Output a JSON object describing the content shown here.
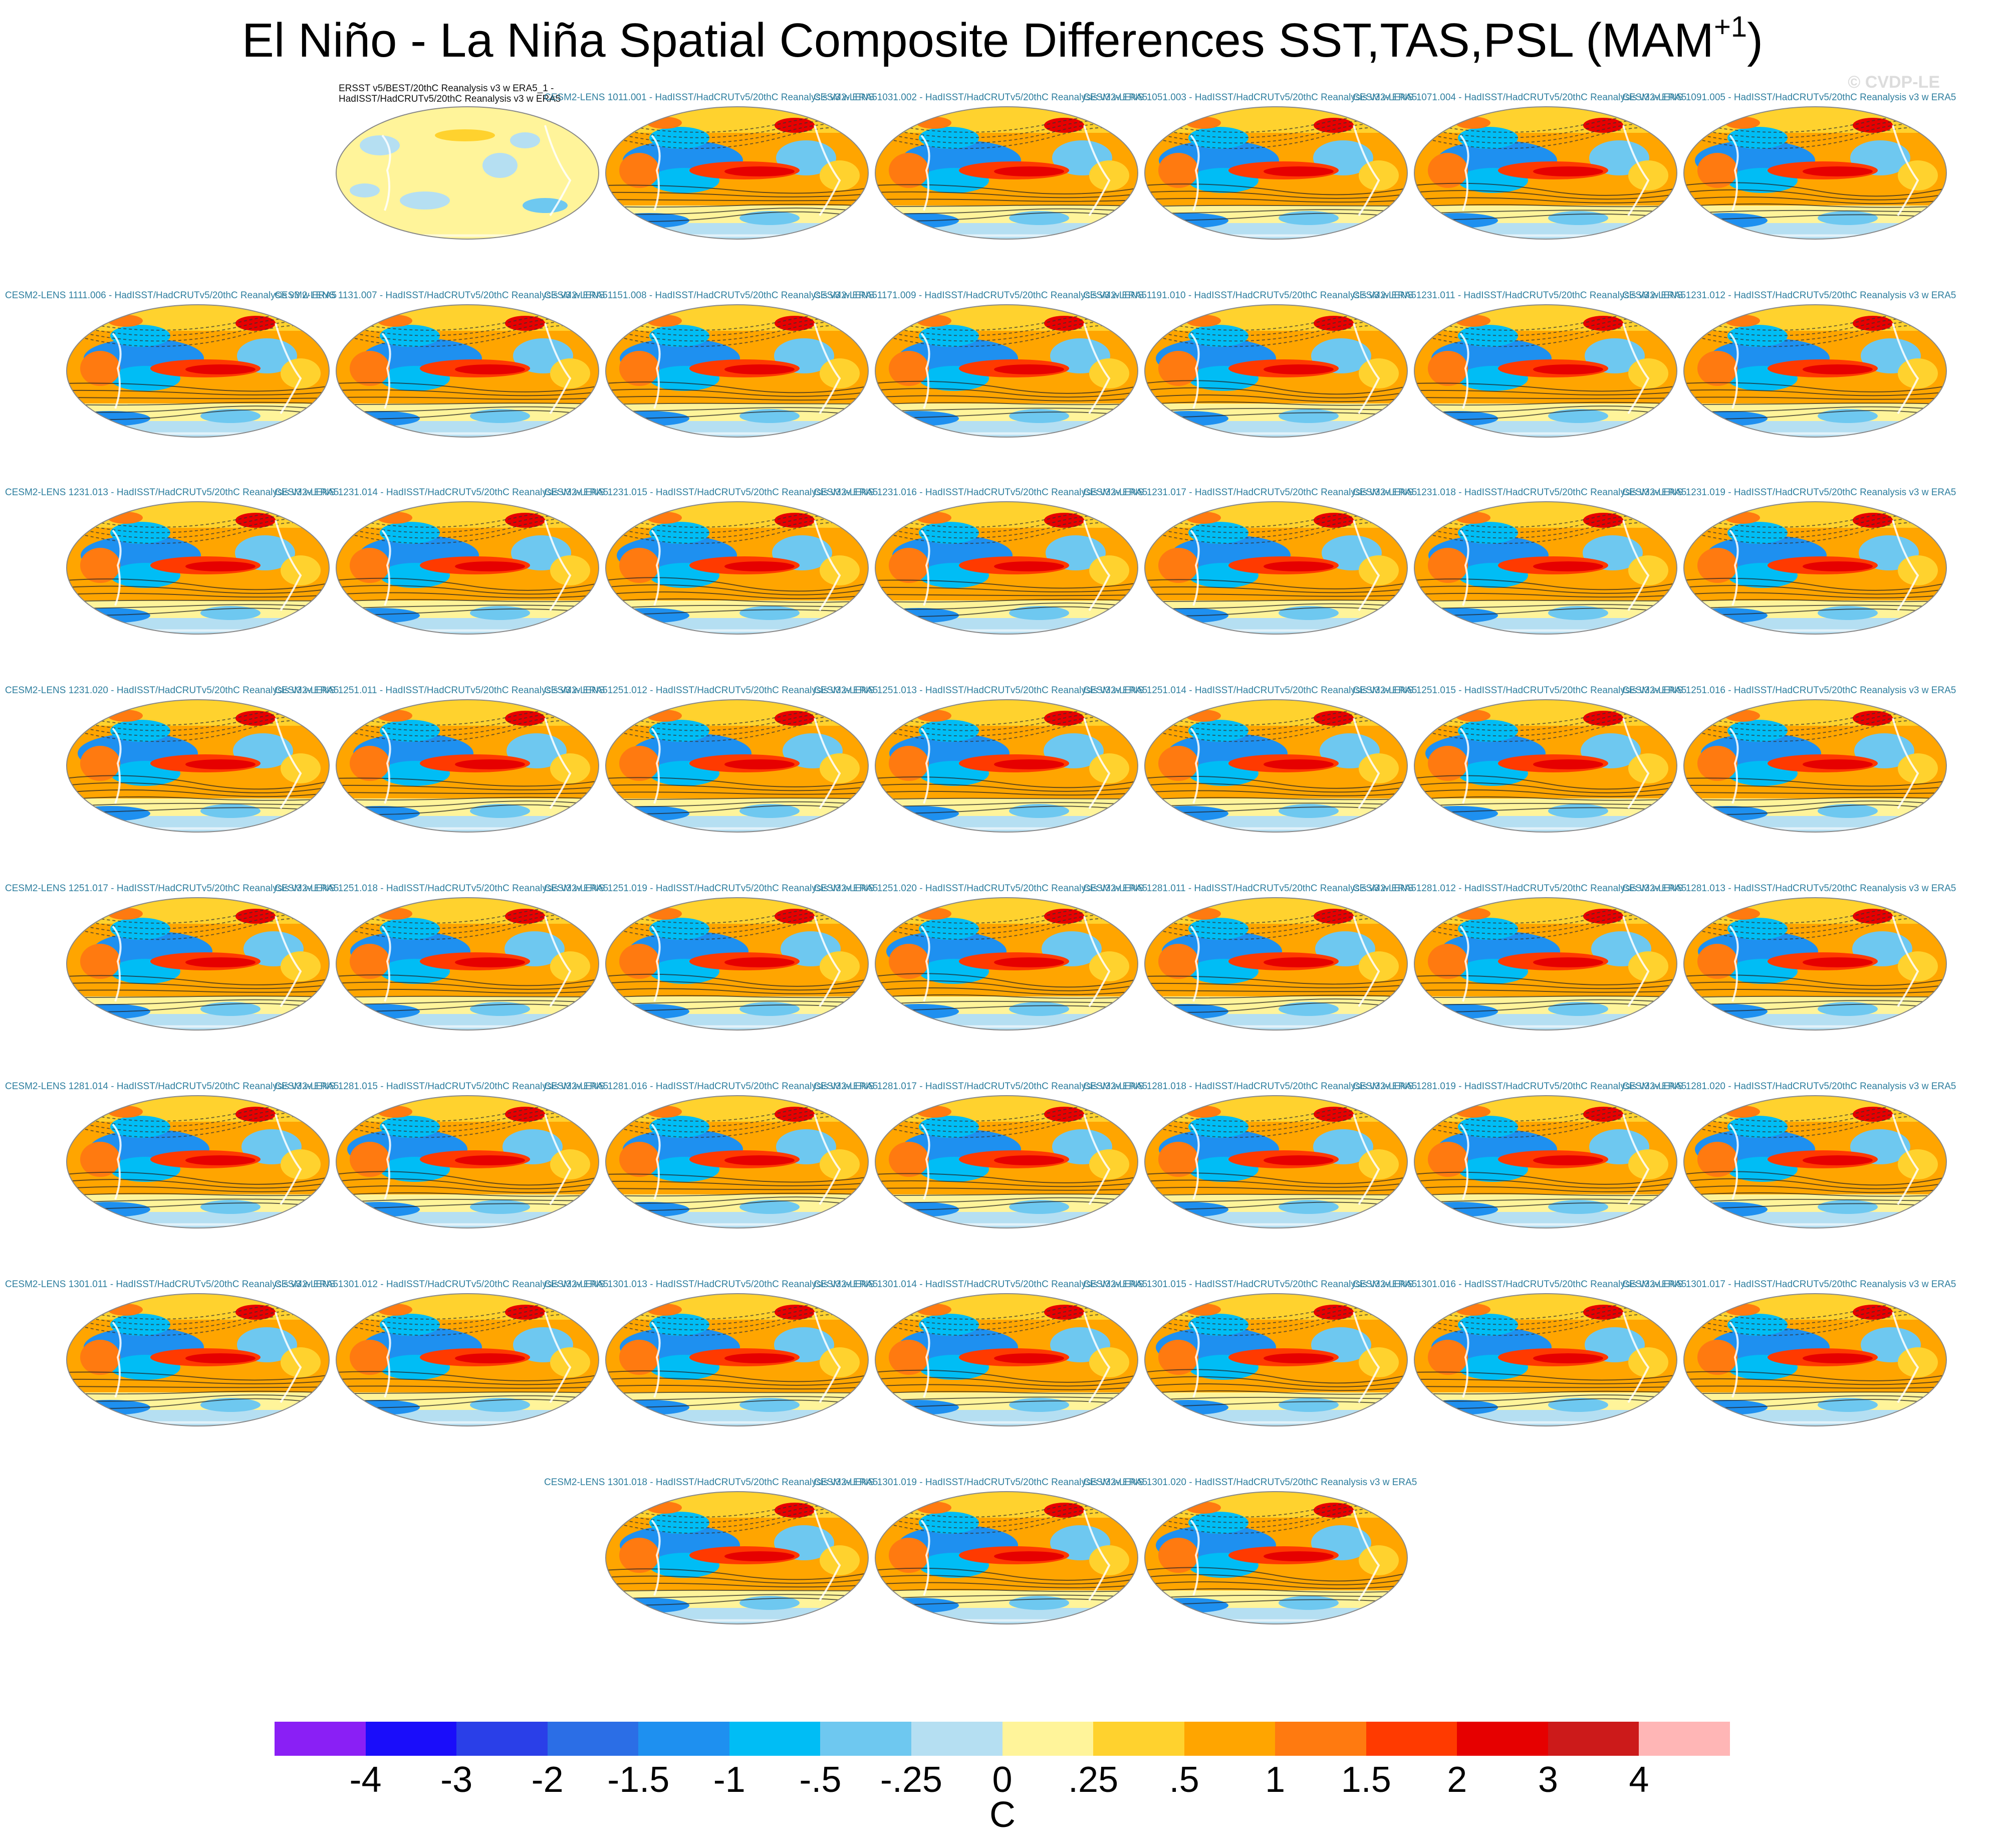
{
  "title": {
    "main": "El Niño - La Niña Spatial Composite Differences SST,TAS,PSL (MAM",
    "superscript": "+1",
    "close": ")"
  },
  "credit": "© CVDP-LE",
  "panels": [
    {
      "label": "ERSST v5/BEST/20thC Reanalysis v3 w ERA5_1 -\nHadISST/HadCRUTv5/20thC Reanalysis v3 w ERA5",
      "observational": true,
      "pattern": 0
    },
    {
      "label": "CESM2-LENS 1011.001 - HadISST/HadCRUTv5/20thC Reanalysis v3 w ERA5",
      "pattern": 1
    },
    {
      "label": "CESM2-LENS 1031.002 - HadISST/HadCRUTv5/20thC Reanalysis v3 w ERA5",
      "pattern": 2
    },
    {
      "label": "CESM2-LENS 1051.003 - HadISST/HadCRUTv5/20thC Reanalysis v3 w ERA5",
      "pattern": 3
    },
    {
      "label": "CESM2-LENS 1071.004 - HadISST/HadCRUTv5/20thC Reanalysis v3 w ERA5",
      "pattern": 4
    },
    {
      "label": "CESM2-LENS 1091.005 - HadISST/HadCRUTv5/20thC Reanalysis v3 w ERA5",
      "pattern": 5
    },
    {
      "label": "CESM2-LENS 1111.006 - HadISST/HadCRUTv5/20thC Reanalysis v3 w ERA5",
      "pattern": 1
    },
    {
      "label": "CESM2-LENS 1131.007 - HadISST/HadCRUTv5/20thC Reanalysis v3 w ERA5",
      "pattern": 2
    },
    {
      "label": "CESM2-LENS 1151.008 - HadISST/HadCRUTv5/20thC Reanalysis v3 w ERA5",
      "pattern": 3
    },
    {
      "label": "CESM2-LENS 1171.009 - HadISST/HadCRUTv5/20thC Reanalysis v3 w ERA5",
      "pattern": 4
    },
    {
      "label": "CESM2-LENS 1191.010 - HadISST/HadCRUTv5/20thC Reanalysis v3 w ERA5",
      "pattern": 5
    },
    {
      "label": "CESM2-LENS 1231.011 - HadISST/HadCRUTv5/20thC Reanalysis v3 w ERA5",
      "pattern": 1
    },
    {
      "label": "CESM2-LENS 1231.012 - HadISST/HadCRUTv5/20thC Reanalysis v3 w ERA5",
      "pattern": 2
    },
    {
      "label": "CESM2-LENS 1231.013 - HadISST/HadCRUTv5/20thC Reanalysis v3 w ERA5",
      "pattern": 3
    },
    {
      "label": "CESM2-LENS 1231.014 - HadISST/HadCRUTv5/20thC Reanalysis v3 w ERA5",
      "pattern": 4
    },
    {
      "label": "CESM2-LENS 1231.015 - HadISST/HadCRUTv5/20thC Reanalysis v3 w ERA5",
      "pattern": 5
    },
    {
      "label": "CESM2-LENS 1231.016 - HadISST/HadCRUTv5/20thC Reanalysis v3 w ERA5",
      "pattern": 1
    },
    {
      "label": "CESM2-LENS 1231.017 - HadISST/HadCRUTv5/20thC Reanalysis v3 w ERA5",
      "pattern": 2
    },
    {
      "label": "CESM2-LENS 1231.018 - HadISST/HadCRUTv5/20thC Reanalysis v3 w ERA5",
      "pattern": 3
    },
    {
      "label": "CESM2-LENS 1231.019 - HadISST/HadCRUTv5/20thC Reanalysis v3 w ERA5",
      "pattern": 4
    },
    {
      "label": "CESM2-LENS 1231.020 - HadISST/HadCRUTv5/20thC Reanalysis v3 w ERA5",
      "pattern": 5
    },
    {
      "label": "CESM2-LENS 1251.011 - HadISST/HadCRUTv5/20thC Reanalysis v3 w ERA5",
      "pattern": 1
    },
    {
      "label": "CESM2-LENS 1251.012 - HadISST/HadCRUTv5/20thC Reanalysis v3 w ERA5",
      "pattern": 2
    },
    {
      "label": "CESM2-LENS 1251.013 - HadISST/HadCRUTv5/20thC Reanalysis v3 w ERA5",
      "pattern": 3
    },
    {
      "label": "CESM2-LENS 1251.014 - HadISST/HadCRUTv5/20thC Reanalysis v3 w ERA5",
      "pattern": 4
    },
    {
      "label": "CESM2-LENS 1251.015 - HadISST/HadCRUTv5/20thC Reanalysis v3 w ERA5",
      "pattern": 5
    },
    {
      "label": "CESM2-LENS 1251.016 - HadISST/HadCRUTv5/20thC Reanalysis v3 w ERA5",
      "pattern": 1
    },
    {
      "label": "CESM2-LENS 1251.017 - HadISST/HadCRUTv5/20thC Reanalysis v3 w ERA5",
      "pattern": 2
    },
    {
      "label": "CESM2-LENS 1251.018 - HadISST/HadCRUTv5/20thC Reanalysis v3 w ERA5",
      "pattern": 3
    },
    {
      "label": "CESM2-LENS 1251.019 - HadISST/HadCRUTv5/20thC Reanalysis v3 w ERA5",
      "pattern": 4
    },
    {
      "label": "CESM2-LENS 1251.020 - HadISST/HadCRUTv5/20thC Reanalysis v3 w ERA5",
      "pattern": 5
    },
    {
      "label": "CESM2-LENS 1281.011 - HadISST/HadCRUTv5/20thC Reanalysis v3 w ERA5",
      "pattern": 1
    },
    {
      "label": "CESM2-LENS 1281.012 - HadISST/HadCRUTv5/20thC Reanalysis v3 w ERA5",
      "pattern": 2
    },
    {
      "label": "CESM2-LENS 1281.013 - HadISST/HadCRUTv5/20thC Reanalysis v3 w ERA5",
      "pattern": 3
    },
    {
      "label": "CESM2-LENS 1281.014 - HadISST/HadCRUTv5/20thC Reanalysis v3 w ERA5",
      "pattern": 4
    },
    {
      "label": "CESM2-LENS 1281.015 - HadISST/HadCRUTv5/20thC Reanalysis v3 w ERA5",
      "pattern": 5
    },
    {
      "label": "CESM2-LENS 1281.016 - HadISST/HadCRUTv5/20thC Reanalysis v3 w ERA5",
      "pattern": 1
    },
    {
      "label": "CESM2-LENS 1281.017 - HadISST/HadCRUTv5/20thC Reanalysis v3 w ERA5",
      "pattern": 2
    },
    {
      "label": "CESM2-LENS 1281.018 - HadISST/HadCRUTv5/20thC Reanalysis v3 w ERA5",
      "pattern": 3
    },
    {
      "label": "CESM2-LENS 1281.019 - HadISST/HadCRUTv5/20thC Reanalysis v3 w ERA5",
      "pattern": 4
    },
    {
      "label": "CESM2-LENS 1281.020 - HadISST/HadCRUTv5/20thC Reanalysis v3 w ERA5",
      "pattern": 5
    },
    {
      "label": "CESM2-LENS 1301.011 - HadISST/HadCRUTv5/20thC Reanalysis v3 w ERA5",
      "pattern": 1
    },
    {
      "label": "CESM2-LENS 1301.012 - HadISST/HadCRUTv5/20thC Reanalysis v3 w ERA5",
      "pattern": 2
    },
    {
      "label": "CESM2-LENS 1301.013 - HadISST/HadCRUTv5/20thC Reanalysis v3 w ERA5",
      "pattern": 3
    },
    {
      "label": "CESM2-LENS 1301.014 - HadISST/HadCRUTv5/20thC Reanalysis v3 w ERA5",
      "pattern": 4
    },
    {
      "label": "CESM2-LENS 1301.015 - HadISST/HadCRUTv5/20thC Reanalysis v3 w ERA5",
      "pattern": 5
    },
    {
      "label": "CESM2-LENS 1301.016 - HadISST/HadCRUTv5/20thC Reanalysis v3 w ERA5",
      "pattern": 1
    },
    {
      "label": "CESM2-LENS 1301.017 - HadISST/HadCRUTv5/20thC Reanalysis v3 w ERA5",
      "pattern": 2
    },
    {
      "label": "CESM2-LENS 1301.018 - HadISST/HadCRUTv5/20thC Reanalysis v3 w ERA5",
      "pattern": 3
    },
    {
      "label": "CESM2-LENS 1301.019 - HadISST/HadCRUTv5/20thC Reanalysis v3 w ERA5",
      "pattern": 4
    },
    {
      "label": "CESM2-LENS 1301.020 - HadISST/HadCRUTv5/20thC Reanalysis v3 w ERA5",
      "pattern": 5
    }
  ],
  "colorbar": {
    "colors": [
      "#8a1ff5",
      "#1a0dfa",
      "#2a3fe8",
      "#2b6ee6",
      "#1e90f0",
      "#00bdf5",
      "#6ec8f0",
      "#b5dff2",
      "#fff49a",
      "#ffd22e",
      "#ffa500",
      "#ff7a10",
      "#ff3a00",
      "#e60000",
      "#cc1a1a",
      "#ffb6b6"
    ],
    "ticks": [
      "-4",
      "-3",
      "-2",
      "-1.5",
      "-1",
      "-.5",
      "-.25",
      "0",
      ".25",
      ".5",
      "1",
      "1.5",
      "2",
      "3",
      "4"
    ],
    "units": "C"
  }
}
